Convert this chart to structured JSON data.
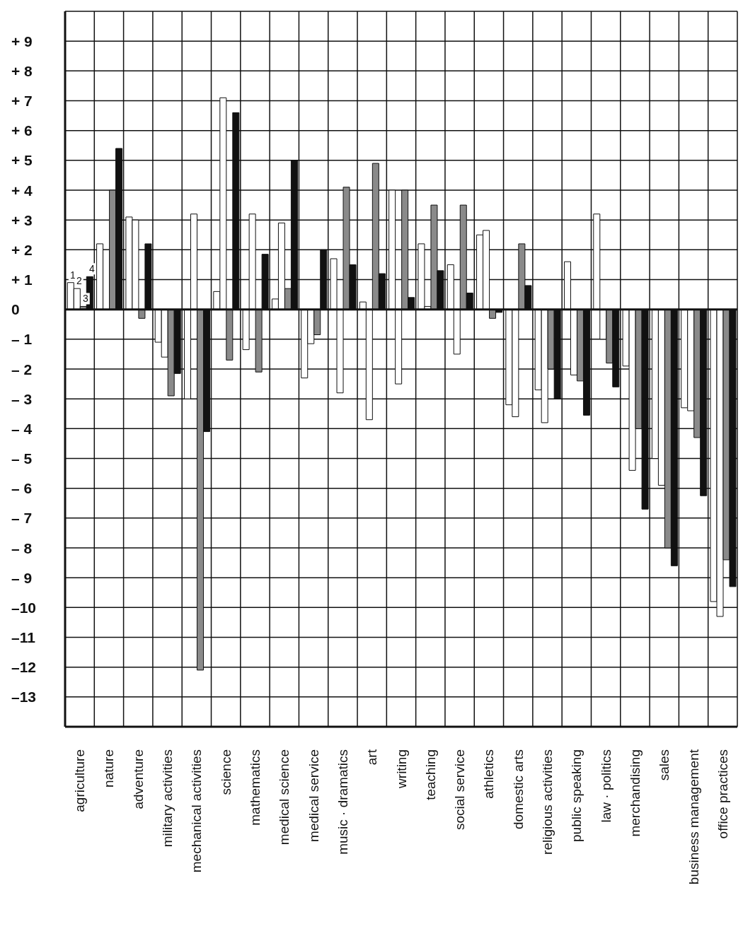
{
  "chart_data": {
    "type": "bar",
    "categories": [
      "agriculture",
      "nature",
      "adventure",
      "military activities",
      "mechanical activities",
      "science",
      "mathematics",
      "medical science",
      "medical service",
      "music · dramatics",
      "art",
      "writing",
      "teaching",
      "social service",
      "athletics",
      "domestic arts",
      "religious activities",
      "public speaking",
      "law · politics",
      "merchandising",
      "sales",
      "business management",
      "office practices"
    ],
    "series": [
      {
        "name": "1",
        "color": "#ffffff",
        "values": [
          0.9,
          2.2,
          3.1,
          -1.1,
          -3.0,
          0.6,
          -1.35,
          0.35,
          -2.3,
          1.7,
          0.25,
          4.0,
          2.2,
          1.5,
          2.5,
          -3.2,
          -2.7,
          1.6,
          3.2,
          -1.9,
          -5.0,
          -3.3,
          -9.8
        ]
      },
      {
        "name": "2",
        "color": "#ffffff",
        "values": [
          0.7,
          2.0,
          3.0,
          -1.6,
          3.2,
          7.1,
          3.2,
          2.9,
          -1.15,
          -2.8,
          -3.7,
          -2.5,
          0.1,
          -1.5,
          2.65,
          -3.6,
          -3.8,
          -2.2,
          -1.0,
          -5.4,
          -5.9,
          -3.4,
          -10.3
        ]
      },
      {
        "name": "3",
        "color": "#8a8a8a",
        "values": [
          0.1,
          4.0,
          -0.3,
          -2.9,
          -12.1,
          -1.7,
          -2.1,
          0.7,
          -0.85,
          4.1,
          4.9,
          4.0,
          3.5,
          3.5,
          -0.3,
          2.2,
          -2.0,
          -2.4,
          -1.8,
          -4.0,
          -8.0,
          -4.3,
          -8.4
        ]
      },
      {
        "name": "4",
        "color": "#111111",
        "values": [
          1.1,
          5.4,
          2.2,
          -2.15,
          -4.1,
          6.6,
          1.85,
          5.0,
          2.0,
          1.5,
          1.2,
          0.4,
          1.3,
          0.55,
          -0.1,
          0.8,
          -3.0,
          -3.55,
          -2.6,
          -6.7,
          -8.6,
          -6.25,
          -9.3
        ]
      }
    ],
    "ylim": [
      -14,
      10
    ],
    "yticks": [
      {
        "value": -13,
        "label": "–13"
      },
      {
        "value": -12,
        "label": "–12"
      },
      {
        "value": -11,
        "label": "–11"
      },
      {
        "value": -10,
        "label": "–10"
      },
      {
        "value": -9,
        "label": "– 9"
      },
      {
        "value": -8,
        "label": "– 8"
      },
      {
        "value": -7,
        "label": "– 7"
      },
      {
        "value": -6,
        "label": "– 6"
      },
      {
        "value": -5,
        "label": "– 5"
      },
      {
        "value": -4,
        "label": "– 4"
      },
      {
        "value": -3,
        "label": "– 3"
      },
      {
        "value": -2,
        "label": "– 2"
      },
      {
        "value": -1,
        "label": "– 1"
      },
      0,
      {
        "value": 1,
        "label": "+ 1"
      },
      {
        "value": 2,
        "label": "+ 2"
      },
      {
        "value": 3,
        "label": "+ 3"
      },
      {
        "value": 4,
        "label": "+ 4"
      },
      {
        "value": 5,
        "label": "+ 5"
      },
      {
        "value": 6,
        "label": "+ 6"
      },
      {
        "value": 7,
        "label": "+ 7"
      },
      {
        "value": 8,
        "label": "+ 8"
      },
      {
        "value": 9,
        "label": "+ 9"
      }
    ],
    "grid": true
  }
}
